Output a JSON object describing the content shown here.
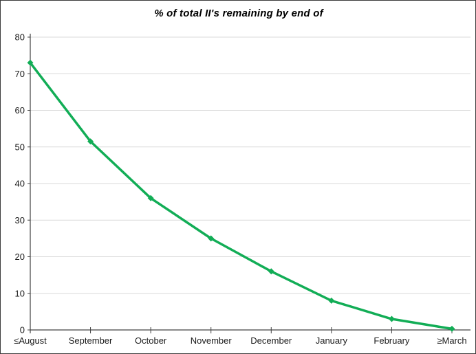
{
  "chart_data": {
    "type": "line",
    "title": "% of total II's remaining by end of",
    "categories": [
      "≤August",
      "September",
      "October",
      "November",
      "December",
      "January",
      "February",
      "≥March"
    ],
    "series": [
      {
        "name": "% of total II's remaining",
        "values": [
          73,
          51.5,
          36,
          25,
          16,
          8,
          3,
          0.3
        ]
      }
    ],
    "xlabel": "",
    "ylabel": "",
    "ylim": [
      0,
      80
    ],
    "ytick_interval": 10,
    "grid": "horizontal-only",
    "legend_position": "none",
    "marker_shape": "diamond"
  },
  "colors": {
    "line": "#12ad56",
    "marker": "#12ad56",
    "gridline": "#d9d9d9",
    "axis": "#404040",
    "text": "#1a1a1a",
    "frame_border": "#3a3a3a",
    "background": "#ffffff"
  }
}
